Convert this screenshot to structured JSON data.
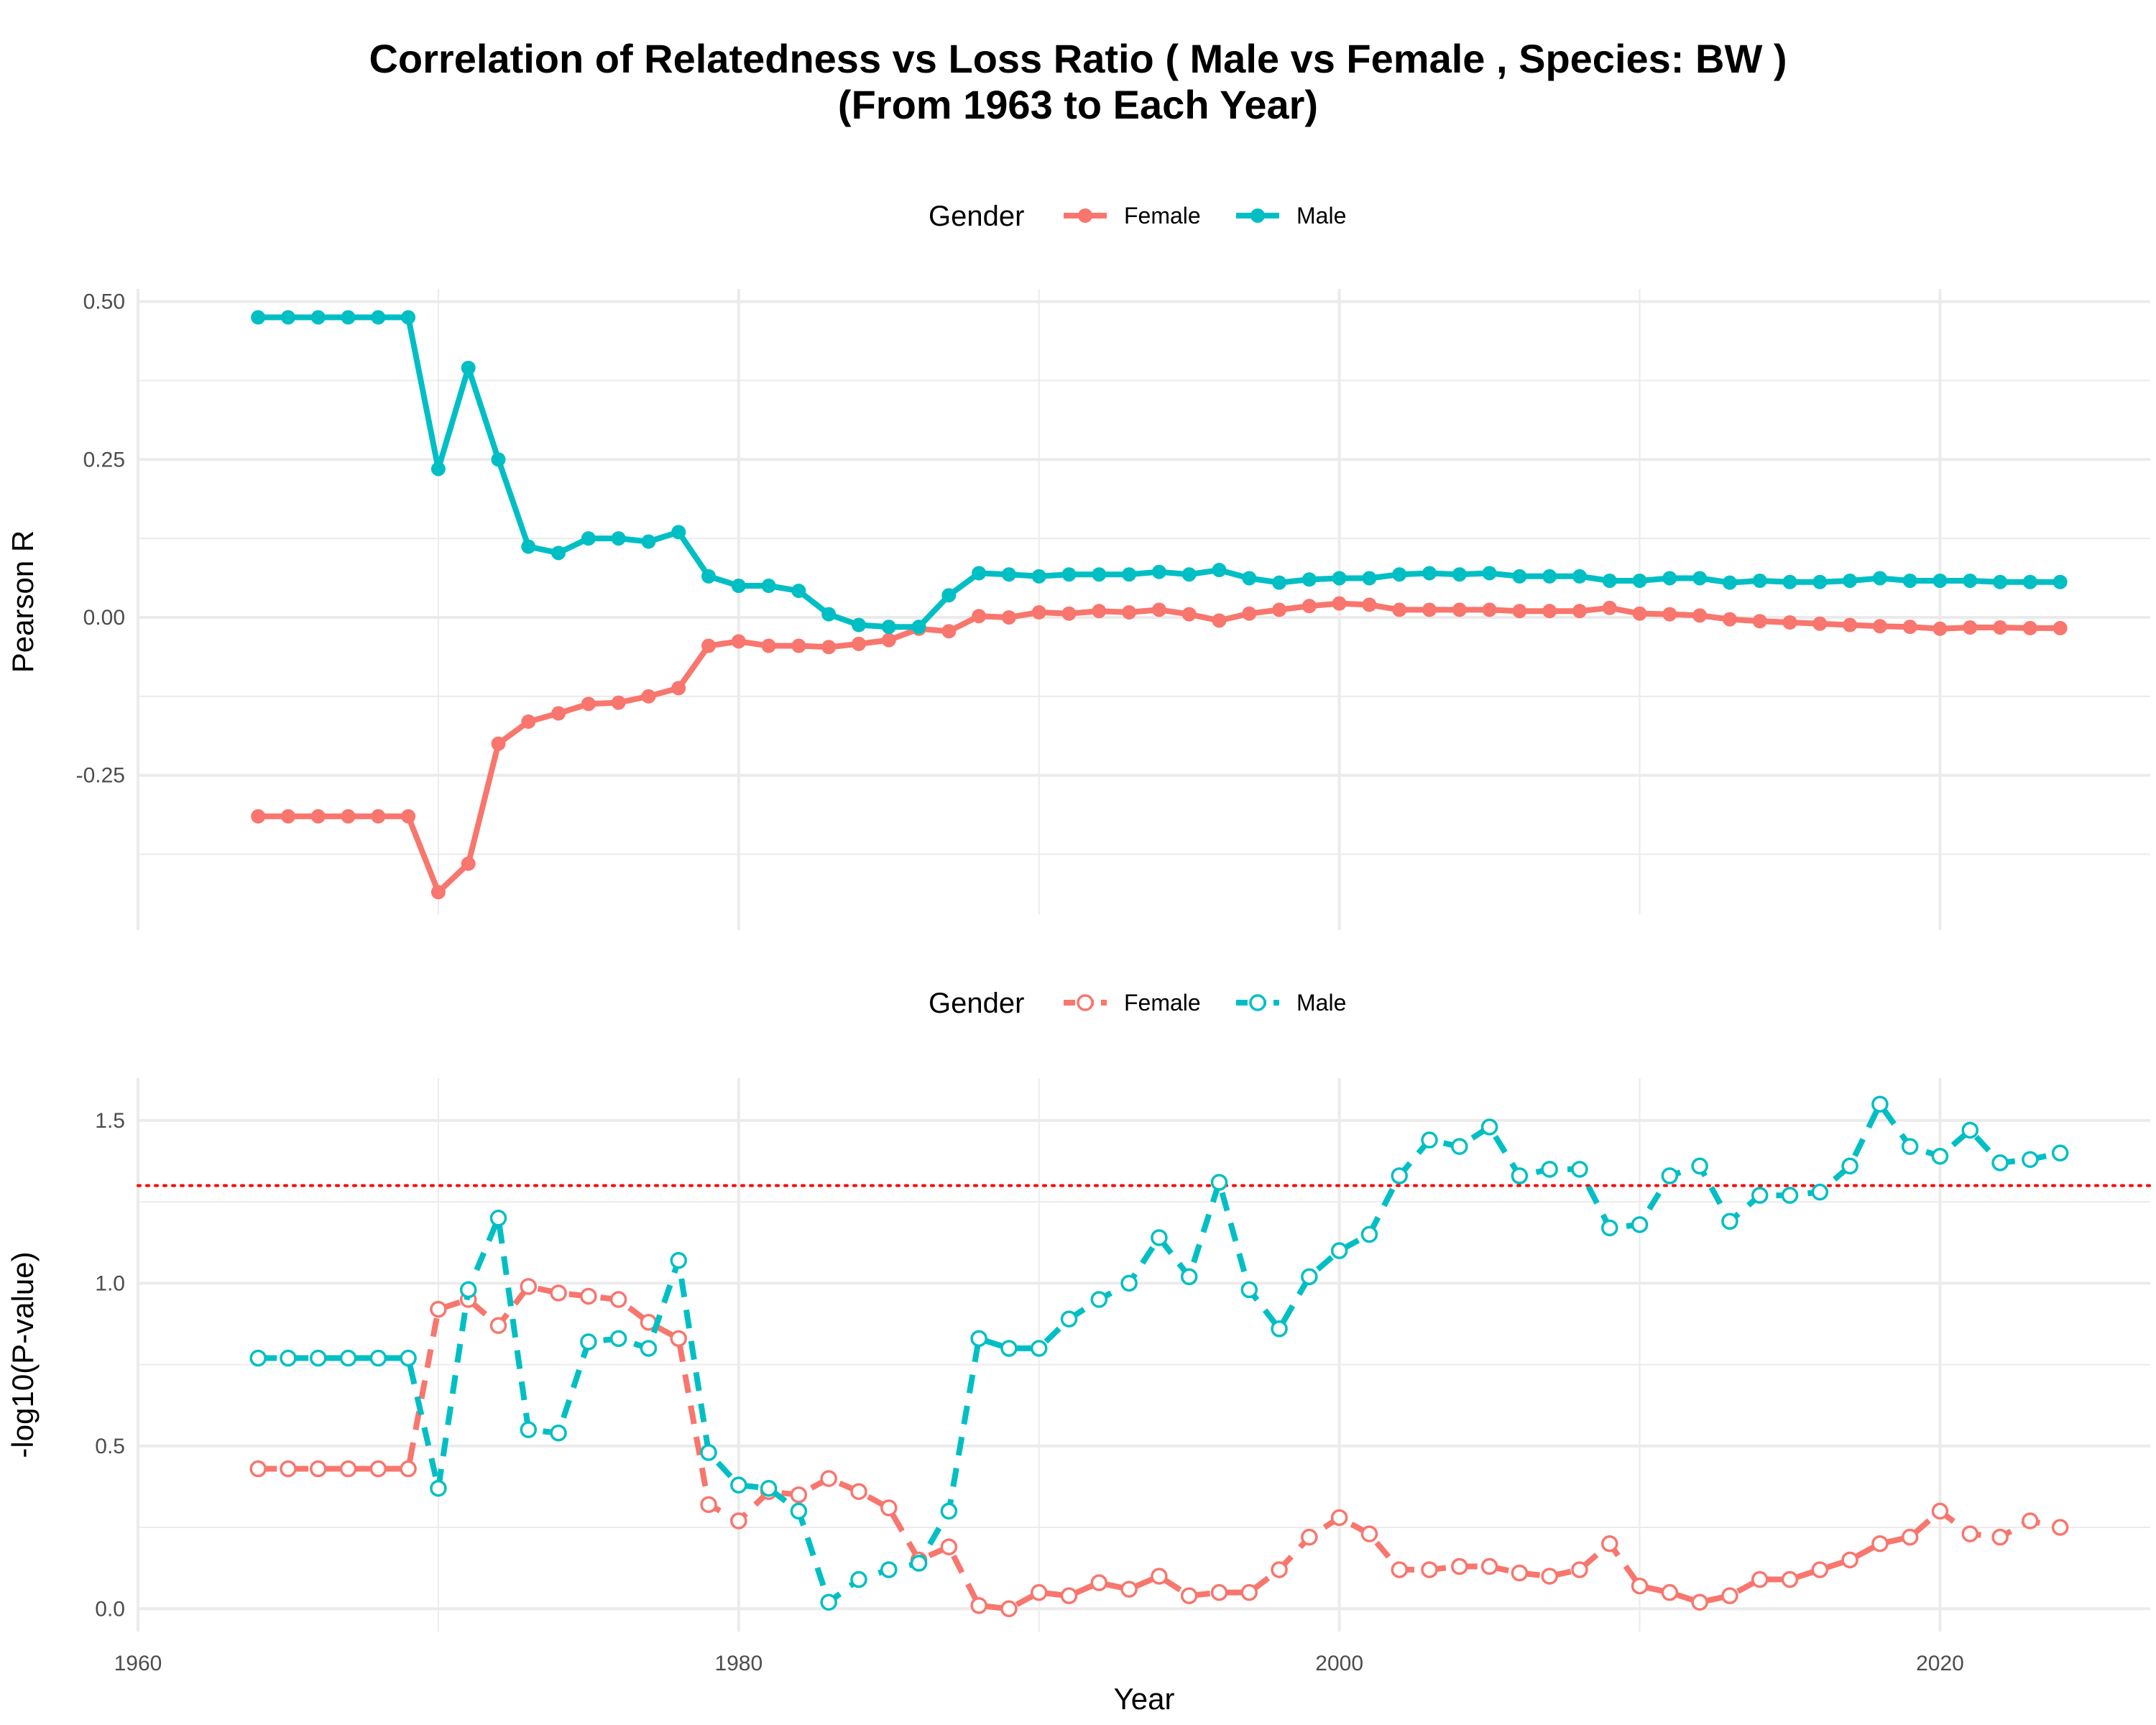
{
  "title": {
    "line1": "Correlation of Relatedness vs Loss Ratio ( Male vs Female , Species: BW )",
    "line2": "(From 1963 to Each Year)"
  },
  "colors": {
    "female": "#F8766D",
    "male": "#00BFC4",
    "threshold": "#FF0000",
    "grid": "#EBEBEB"
  },
  "legend": {
    "title": "Gender",
    "female": "Female",
    "male": "Male"
  },
  "chart_data": [
    {
      "type": "line",
      "panel": "top",
      "xlabel": "",
      "ylabel": "Pearson R",
      "xlim": [
        1960,
        2027
      ],
      "ylim": [
        -0.47,
        0.52
      ],
      "yticks": [
        -0.25,
        0.0,
        0.25,
        0.5
      ],
      "ytick_labels": [
        "-0.25",
        "0.00",
        "0.25",
        "0.50"
      ],
      "xticks": [
        1960,
        1980,
        2000,
        2020
      ],
      "grid": true,
      "legend_position": "top",
      "x": [
        1964,
        1965,
        1966,
        1967,
        1968,
        1969,
        1970,
        1971,
        1972,
        1973,
        1974,
        1975,
        1976,
        1977,
        1978,
        1979,
        1980,
        1981,
        1982,
        1983,
        1984,
        1985,
        1986,
        1987,
        1988,
        1989,
        1990,
        1991,
        1992,
        1993,
        1994,
        1995,
        1996,
        1997,
        1998,
        1999,
        2000,
        2001,
        2002,
        2003,
        2004,
        2005,
        2006,
        2007,
        2008,
        2009,
        2010,
        2011,
        2012,
        2013,
        2014,
        2015,
        2016,
        2017,
        2018,
        2019,
        2020,
        2021,
        2022,
        2023,
        2024
      ],
      "series": [
        {
          "name": "Female",
          "values": [
            -0.315,
            -0.315,
            -0.315,
            -0.315,
            -0.315,
            -0.315,
            -0.435,
            -0.39,
            -0.2,
            -0.165,
            -0.152,
            -0.137,
            -0.135,
            -0.125,
            -0.112,
            -0.045,
            -0.038,
            -0.045,
            -0.045,
            -0.047,
            -0.042,
            -0.036,
            -0.018,
            -0.022,
            0.002,
            0.0,
            0.008,
            0.006,
            0.01,
            0.008,
            0.012,
            0.005,
            -0.005,
            0.006,
            0.012,
            0.018,
            0.022,
            0.02,
            0.012,
            0.012,
            0.012,
            0.012,
            0.01,
            0.01,
            0.01,
            0.015,
            0.006,
            0.005,
            0.003,
            -0.003,
            -0.006,
            -0.008,
            -0.01,
            -0.012,
            -0.014,
            -0.015,
            -0.018,
            -0.016,
            -0.016,
            -0.017,
            -0.017
          ]
        },
        {
          "name": "Male",
          "values": [
            0.475,
            0.475,
            0.475,
            0.475,
            0.475,
            0.475,
            0.235,
            0.395,
            0.25,
            0.112,
            0.102,
            0.125,
            0.125,
            0.12,
            0.135,
            0.065,
            0.05,
            0.05,
            0.042,
            0.005,
            -0.012,
            -0.015,
            -0.015,
            0.035,
            0.07,
            0.068,
            0.065,
            0.068,
            0.068,
            0.068,
            0.072,
            0.068,
            0.075,
            0.062,
            0.055,
            0.06,
            0.062,
            0.062,
            0.068,
            0.07,
            0.068,
            0.07,
            0.065,
            0.065,
            0.065,
            0.058,
            0.058,
            0.062,
            0.062,
            0.055,
            0.058,
            0.056,
            0.056,
            0.058,
            0.062,
            0.058,
            0.058,
            0.058,
            0.056,
            0.056,
            0.056
          ]
        }
      ]
    },
    {
      "type": "line",
      "panel": "bottom",
      "xlabel": "Year",
      "ylabel": "-log10(P-value)",
      "xlim": [
        1960,
        2027
      ],
      "ylim": [
        -0.07,
        1.63
      ],
      "yticks": [
        0.0,
        0.5,
        1.0,
        1.5
      ],
      "ytick_labels": [
        "0.0",
        "0.5",
        "1.0",
        "1.5"
      ],
      "xticks": [
        1960,
        1980,
        2000,
        2020
      ],
      "xtick_labels": [
        "1960",
        "1980",
        "2000",
        "2020"
      ],
      "grid": true,
      "legend_position": "top",
      "hline": 1.3,
      "x": [
        1964,
        1965,
        1966,
        1967,
        1968,
        1969,
        1970,
        1971,
        1972,
        1973,
        1974,
        1975,
        1976,
        1977,
        1978,
        1979,
        1980,
        1981,
        1982,
        1983,
        1984,
        1985,
        1986,
        1987,
        1988,
        1989,
        1990,
        1991,
        1992,
        1993,
        1994,
        1995,
        1996,
        1997,
        1998,
        1999,
        2000,
        2001,
        2002,
        2003,
        2004,
        2005,
        2006,
        2007,
        2008,
        2009,
        2010,
        2011,
        2012,
        2013,
        2014,
        2015,
        2016,
        2017,
        2018,
        2019,
        2020,
        2021,
        2022,
        2023,
        2024
      ],
      "series": [
        {
          "name": "Female",
          "values": [
            0.43,
            0.43,
            0.43,
            0.43,
            0.43,
            0.43,
            0.92,
            0.95,
            0.87,
            0.99,
            0.97,
            0.96,
            0.95,
            0.88,
            0.83,
            0.32,
            0.27,
            0.36,
            0.35,
            0.4,
            0.36,
            0.31,
            0.15,
            0.19,
            0.01,
            0.0,
            0.05,
            0.04,
            0.08,
            0.06,
            0.1,
            0.04,
            0.05,
            0.05,
            0.12,
            0.22,
            0.28,
            0.23,
            0.12,
            0.12,
            0.13,
            0.13,
            0.11,
            0.1,
            0.12,
            0.2,
            0.07,
            0.05,
            0.02,
            0.04,
            0.09,
            0.09,
            0.12,
            0.15,
            0.2,
            0.22,
            0.3,
            0.23,
            0.22,
            0.27,
            0.25
          ]
        },
        {
          "name": "Male",
          "values": [
            0.77,
            0.77,
            0.77,
            0.77,
            0.77,
            0.77,
            0.37,
            0.98,
            1.2,
            0.55,
            0.54,
            0.82,
            0.83,
            0.8,
            1.07,
            0.48,
            0.38,
            0.37,
            0.3,
            0.02,
            0.09,
            0.12,
            0.14,
            0.3,
            0.83,
            0.8,
            0.8,
            0.89,
            0.95,
            1.0,
            1.14,
            1.02,
            1.31,
            0.98,
            0.86,
            1.02,
            1.1,
            1.15,
            1.33,
            1.44,
            1.42,
            1.48,
            1.33,
            1.35,
            1.35,
            1.17,
            1.18,
            1.33,
            1.36,
            1.19,
            1.27,
            1.27,
            1.28,
            1.36,
            1.55,
            1.42,
            1.39,
            1.47,
            1.37,
            1.38,
            1.4
          ]
        }
      ]
    }
  ]
}
